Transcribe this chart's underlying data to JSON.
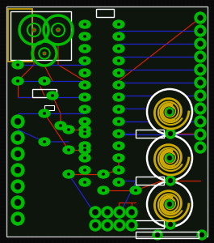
{
  "bg_color": "#080808",
  "grid_color": "#1a2a1a",
  "board_color": "#0d150d",
  "border_color": "#c8c8c8",
  "green": "#00bb00",
  "red": "#cc2200",
  "blue": "#2222cc",
  "yellow": "#ccaa00",
  "white": "#ffffff",
  "gold": "#ccaa00",
  "figsize": [
    2.65,
    3.0
  ],
  "dpi": 100
}
